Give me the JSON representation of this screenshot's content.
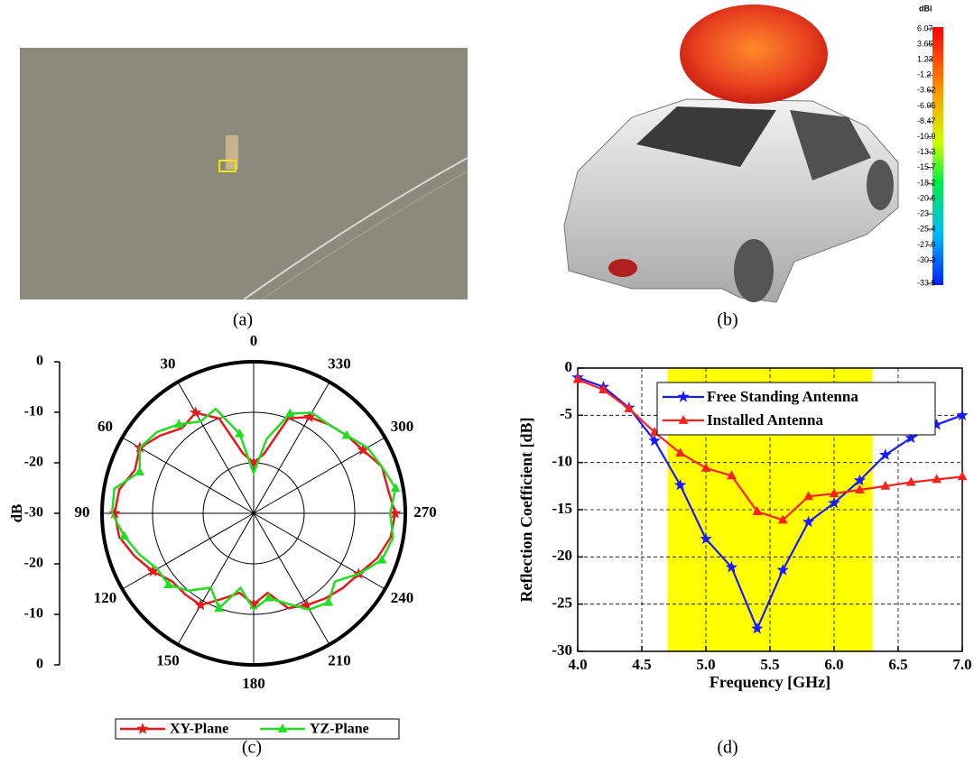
{
  "panel_labels": [
    "(a)",
    "(b)",
    "(c)",
    "(d)"
  ],
  "colorbar": {
    "title": "dBi",
    "ticks": [
      6.07,
      3.65,
      1.23,
      -1.2,
      -3.62,
      -6.05,
      -8.47,
      -10.9,
      -13.3,
      -15.7,
      -18.2,
      -20.6,
      -23,
      -25.4,
      -27.9,
      -30.3,
      -33.9
    ]
  },
  "chart_data": [
    {
      "type": "polar",
      "ylabel": "dB",
      "theta": [
        0,
        10,
        20,
        30,
        40,
        50,
        60,
        70,
        80,
        90,
        100,
        110,
        120,
        130,
        140,
        150,
        160,
        170,
        180,
        190,
        200,
        210,
        220,
        230,
        240,
        250,
        260,
        270,
        280,
        290,
        300,
        310,
        320,
        330,
        340,
        350
      ],
      "thetaticks": [
        0,
        30,
        60,
        90,
        120,
        150,
        180,
        210,
        240,
        270,
        300,
        330
      ],
      "rlim": [
        -30,
        0
      ],
      "rticks": [
        -30,
        -20,
        -10,
        0
      ],
      "legend": "bottom",
      "series": [
        {
          "name": "XY-Plane",
          "color": "#e31a1c",
          "marker": "star",
          "values": [
            -20,
            -18,
            -10,
            -7,
            -8,
            -6,
            -4,
            -5,
            -3,
            -2.5,
            -3,
            -5,
            -7,
            -9,
            -9,
            -9,
            -12,
            -14,
            -12,
            -14,
            -10,
            -9,
            -8,
            -7,
            -6,
            -4,
            -2.5,
            -2,
            -3,
            -3,
            -5,
            -6,
            -7,
            -8,
            -10,
            -18
          ]
        },
        {
          "name": "YZ-Plane",
          "color": "#22dd22",
          "marker": "triangle",
          "values": [
            -22,
            -14,
            -8,
            -9,
            -7,
            -5,
            -4,
            -6,
            -2,
            -2,
            -4,
            -6,
            -8,
            -8,
            -10,
            -13,
            -10,
            -15,
            -11,
            -13,
            -11,
            -8,
            -7,
            -9,
            -6,
            -3,
            -2,
            -3,
            -1.5,
            -3,
            -4,
            -6,
            -7,
            -7,
            -9,
            -15
          ]
        }
      ]
    },
    {
      "type": "line",
      "xlabel": "Frequency [GHz]",
      "ylabel": "Reflection Coefficient [dB]",
      "x": [
        4.0,
        4.2,
        4.4,
        4.6,
        4.8,
        5.0,
        5.2,
        5.4,
        5.6,
        5.8,
        6.0,
        6.2,
        6.4,
        6.6,
        6.8,
        7.0
      ],
      "xlim": [
        4,
        7
      ],
      "ylim": [
        -30,
        0
      ],
      "xticks": [
        {
          "value": 4,
          "label": "4.0"
        },
        4.5,
        {
          "value": 5,
          "label": "5.0"
        },
        5.5,
        {
          "value": 6,
          "label": "6.0"
        },
        6.5,
        {
          "value": 7,
          "label": "7.0"
        }
      ],
      "yticks": [
        0,
        -5,
        -10,
        -15,
        -20,
        -25,
        -30
      ],
      "grid": true,
      "legend": "upper center",
      "highlight": {
        "xrange": [
          4.7,
          6.3
        ],
        "color": "#ffff00"
      },
      "series": [
        {
          "name": "Free Standing Antenna",
          "color": "#1a1aff",
          "marker": "star",
          "values": [
            -1,
            -2,
            -4.2,
            -7.7,
            -12.4,
            -18.1,
            -21.1,
            -27.6,
            -21.4,
            -16.3,
            -14.3,
            -11.9,
            -9.2,
            -7.4,
            -6,
            -5
          ]
        },
        {
          "name": "Installed Antenna",
          "color": "#ff2020",
          "marker": "triangle",
          "values": [
            -1.2,
            -2.3,
            -4.3,
            -6.8,
            -9,
            -10.6,
            -11.4,
            -15.2,
            -16.1,
            -13.6,
            -13.3,
            -12.9,
            -12.5,
            -12.1,
            -11.8,
            -11.5
          ]
        }
      ]
    }
  ]
}
